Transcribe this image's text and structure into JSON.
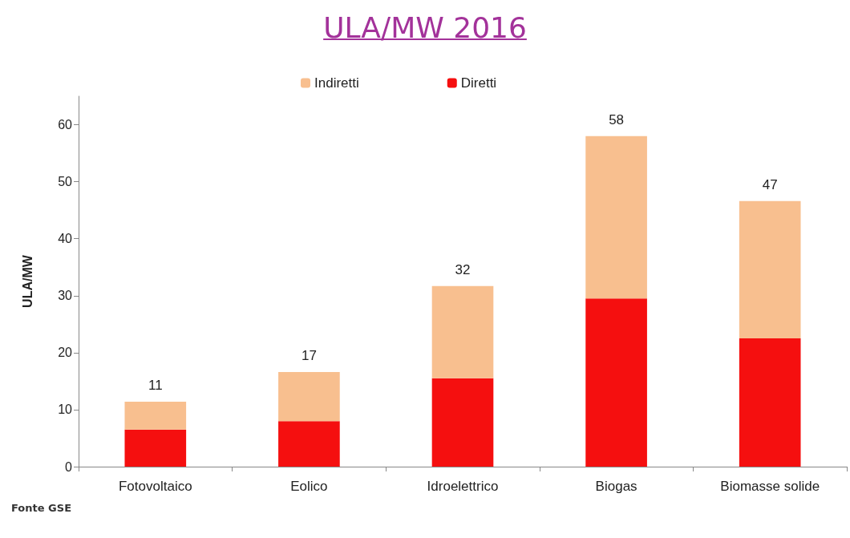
{
  "chart_data": {
    "type": "bar",
    "title": "ULA/MW 2016",
    "ylabel": "ULA/MW",
    "categories": [
      "Fotovoltaico",
      "Eolico",
      "Idroelettrico",
      "Biogas",
      "Biomasse solide"
    ],
    "stacked": true,
    "series": [
      {
        "name": "Diretti",
        "color": "#f50f0f",
        "values": [
          6.5,
          8,
          15.5,
          29.5,
          22.5
        ]
      },
      {
        "name": "Indiretti",
        "color": "#f8bf8f",
        "values": [
          4.9,
          8.6,
          16.2,
          28.5,
          24.1
        ]
      }
    ],
    "totals": [
      "11",
      "17",
      "32",
      "58",
      "47"
    ],
    "ylim": [
      0,
      65
    ],
    "yticks": [
      0,
      10,
      20,
      30,
      40,
      50,
      60
    ],
    "grid": false,
    "legend": "top",
    "annotations": [
      "Fonte GSE"
    ]
  }
}
